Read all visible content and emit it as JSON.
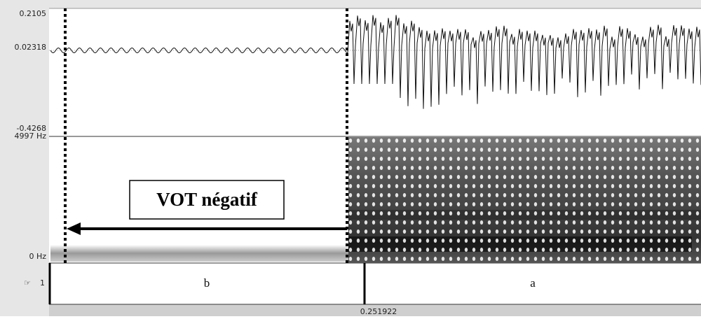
{
  "waveform": {
    "max_label": "0.2105",
    "zero_label": "0.02318",
    "min_label": "-0.4268"
  },
  "spectrogram": {
    "top_label": "4997 Hz",
    "bottom_label": "0 Hz"
  },
  "annotation": "VOT négatif",
  "tier": {
    "number": "1",
    "intervals": [
      "b",
      "a"
    ]
  },
  "cursor_time": "0.251922"
}
